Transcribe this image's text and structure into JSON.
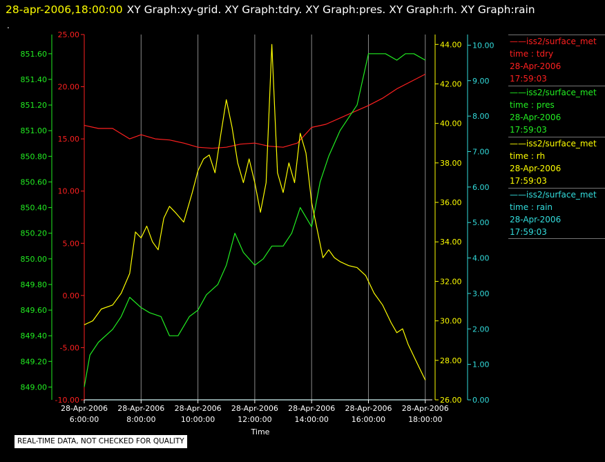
{
  "header": {
    "timestamp": "28-apr-2006,18:00:00",
    "graphs": "XY Graph:xy-grid.  XY Graph:tdry.  XY Graph:pres.  XY Graph:rh.  XY Graph:rain"
  },
  "marker": ".",
  "disclaimer": "REAL-TIME DATA, NOT CHECKED FOR QUALITY",
  "legend": [
    {
      "station": "iss2/surface_met",
      "variable": "time : tdry",
      "date": "28-Apr-2006",
      "time": "17:59:03",
      "color": "#ff2020"
    },
    {
      "station": "iss2/surface_met",
      "variable": "time : pres",
      "date": "28-Apr-2006",
      "time": "17:59:03",
      "color": "#22ee22"
    },
    {
      "station": "iss2/surface_met",
      "variable": "time : rh",
      "date": "28-Apr-2006",
      "time": "17:59:03",
      "color": "#ffff00"
    },
    {
      "station": "iss2/surface_met",
      "variable": "time : rain",
      "date": "28-Apr-2006",
      "time": "17:59:03",
      "color": "#33dddd"
    }
  ],
  "chart_data": {
    "type": "line",
    "xlabel": "Time",
    "xlim": [
      6,
      18.2
    ],
    "xticks": [
      6,
      8,
      10,
      12,
      14,
      16,
      18
    ],
    "xtick_labels": [
      [
        "28-Apr-2006",
        "6:00:00"
      ],
      [
        "28-Apr-2006",
        "8:00:00"
      ],
      [
        "28-Apr-2006",
        "10:00:00"
      ],
      [
        "28-Apr-2006",
        "12:00:00"
      ],
      [
        "28-Apr-2006",
        "14:00:00"
      ],
      [
        "28-Apr-2006",
        "16:00:00"
      ],
      [
        "28-Apr-2006",
        "18:00:00"
      ]
    ],
    "grid": "vertical",
    "axes": [
      {
        "id": "pres",
        "color": "#22ee22",
        "lim": [
          848.9,
          851.75
        ],
        "ticks": [
          "849.00",
          "849.20",
          "849.40",
          "849.60",
          "849.80",
          "850.00",
          "850.20",
          "850.40",
          "850.60",
          "850.80",
          "851.00",
          "851.20",
          "851.40",
          "851.60"
        ]
      },
      {
        "id": "tdry",
        "color": "#ff2020",
        "lim": [
          -10,
          25
        ],
        "ticks": [
          "-10.00",
          "-5.00",
          "0.00",
          "5.00",
          "10.00",
          "15.00",
          "20.00",
          "25.00"
        ]
      },
      {
        "id": "rh",
        "color": "#ffff00",
        "lim": [
          26,
          44.5
        ],
        "ticks": [
          "26.00",
          "28.00",
          "30.00",
          "32.00",
          "34.00",
          "36.00",
          "38.00",
          "40.00",
          "42.00",
          "44.00"
        ]
      },
      {
        "id": "rain",
        "color": "#33dddd",
        "lim": [
          0,
          10.3
        ],
        "ticks": [
          "0.00",
          "1.00",
          "2.00",
          "3.00",
          "4.00",
          "5.00",
          "6.00",
          "7.00",
          "8.00",
          "9.00",
          "10.00"
        ]
      }
    ],
    "series": [
      {
        "name": "iss2/surface_met time : tdry",
        "axis": "tdry",
        "color": "#ff2020",
        "x": [
          6.0,
          6.5,
          7.0,
          7.3,
          7.6,
          8.0,
          8.5,
          9.0,
          9.5,
          10.0,
          10.5,
          11.0,
          11.5,
          12.0,
          12.5,
          13.0,
          13.5,
          14.0,
          14.5,
          15.0,
          15.5,
          16.0,
          16.5,
          17.0,
          17.5,
          18.0
        ],
        "y": [
          16.3,
          16.0,
          16.0,
          15.5,
          15.0,
          15.4,
          15.0,
          14.9,
          14.6,
          14.2,
          14.1,
          14.2,
          14.5,
          14.6,
          14.3,
          14.2,
          14.6,
          16.1,
          16.4,
          17.0,
          17.6,
          18.2,
          18.9,
          19.8,
          20.5,
          21.2
        ]
      },
      {
        "name": "iss2/surface_met time : pres",
        "axis": "pres",
        "color": "#22ee22",
        "x": [
          6.0,
          6.2,
          6.5,
          7.0,
          7.3,
          7.6,
          8.0,
          8.3,
          8.7,
          9.0,
          9.3,
          9.7,
          10.0,
          10.3,
          10.7,
          11.0,
          11.3,
          11.6,
          12.0,
          12.3,
          12.6,
          13.0,
          13.3,
          13.6,
          14.0,
          14.3,
          14.6,
          15.0,
          15.3,
          15.6,
          16.0,
          16.3,
          16.6,
          17.0,
          17.3,
          17.6,
          18.0
        ],
        "y": [
          849.0,
          849.25,
          849.35,
          849.45,
          849.55,
          849.7,
          849.62,
          849.58,
          849.55,
          849.4,
          849.4,
          849.55,
          849.6,
          849.72,
          849.8,
          849.95,
          850.2,
          850.05,
          849.95,
          850.0,
          850.1,
          850.1,
          850.2,
          850.4,
          850.25,
          850.6,
          850.8,
          851.0,
          851.1,
          851.2,
          851.6,
          851.6,
          851.6,
          851.55,
          851.6,
          851.6,
          851.55
        ]
      },
      {
        "name": "iss2/surface_met time : rh",
        "axis": "rh",
        "color": "#ffff00",
        "x": [
          6.0,
          6.3,
          6.6,
          7.0,
          7.3,
          7.6,
          7.8,
          8.0,
          8.2,
          8.4,
          8.6,
          8.8,
          9.0,
          9.2,
          9.5,
          9.8,
          10.0,
          10.2,
          10.4,
          10.6,
          10.8,
          11.0,
          11.2,
          11.4,
          11.6,
          11.8,
          12.0,
          12.2,
          12.4,
          12.6,
          12.8,
          13.0,
          13.2,
          13.4,
          13.6,
          13.8,
          14.0,
          14.2,
          14.4,
          14.6,
          14.8,
          15.0,
          15.3,
          15.6,
          15.9,
          16.2,
          16.5,
          16.8,
          17.0,
          17.2,
          17.4,
          17.6,
          17.8,
          18.0
        ],
        "y": [
          29.8,
          30.0,
          30.6,
          30.8,
          31.4,
          32.4,
          34.5,
          34.2,
          34.8,
          34.0,
          33.6,
          35.2,
          35.8,
          35.5,
          35.0,
          36.5,
          37.6,
          38.2,
          38.4,
          37.5,
          39.4,
          41.2,
          39.8,
          38.0,
          37.0,
          38.2,
          37.0,
          35.5,
          37.0,
          44.0,
          37.5,
          36.5,
          38.0,
          37.0,
          39.5,
          38.5,
          36.0,
          34.6,
          33.2,
          33.6,
          33.2,
          33.0,
          32.8,
          32.7,
          32.3,
          31.4,
          30.8,
          29.9,
          29.4,
          29.6,
          28.8,
          28.2,
          27.6,
          27.0
        ]
      },
      {
        "name": "iss2/surface_met time : rain",
        "axis": "rain",
        "color": "#33dddd",
        "x": [
          6.0,
          18.0
        ],
        "y": [
          0.0,
          0.0
        ]
      }
    ]
  }
}
